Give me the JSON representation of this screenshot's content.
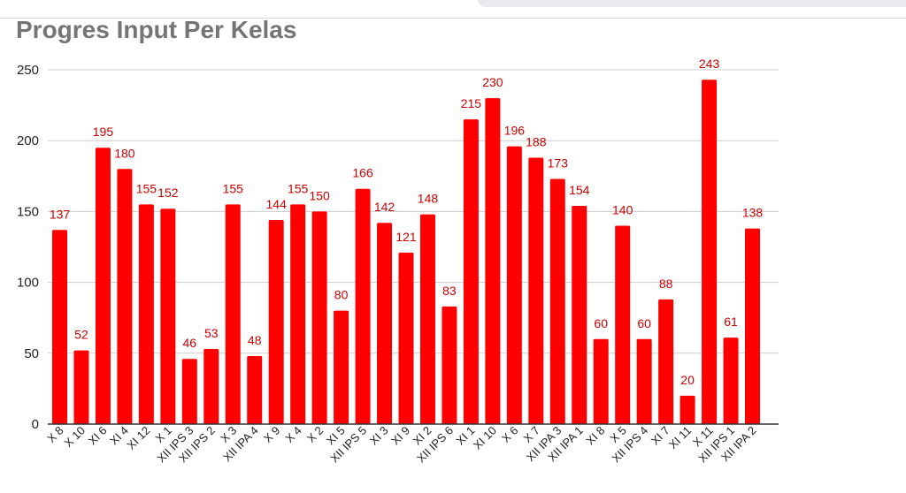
{
  "chart_data": {
    "type": "bar",
    "title": "Progres Input Per Kelas",
    "xlabel": "",
    "ylabel": "",
    "ylim": [
      0,
      250
    ],
    "yticks": [
      0,
      50,
      100,
      150,
      200,
      250
    ],
    "grid": true,
    "legend": "none",
    "bar_color": "#ff0000",
    "label_color": "#cc0000",
    "categories": [
      "X 8",
      "X 10",
      "XI 6",
      "XI 4",
      "XI 12",
      "X 1",
      "XII IPS 3",
      "XII IPS 2",
      "X 3",
      "XII IPA 4",
      "X 9",
      "X 4",
      "X 2",
      "XI 5",
      "XII IPS 5",
      "XI 3",
      "XI 9",
      "XI 2",
      "XII IPS 6",
      "XI 1",
      "XI 10",
      "X 6",
      "X 7",
      "XII IPA 3",
      "XII IPA 1",
      "XI 8",
      "X 5",
      "XII IPS 4",
      "XI 7",
      "XI 11",
      "X 11",
      "XII IPS 1",
      "XII IPA 2"
    ],
    "values": [
      137,
      52,
      195,
      180,
      155,
      152,
      46,
      53,
      155,
      48,
      144,
      155,
      150,
      80,
      166,
      142,
      121,
      148,
      83,
      215,
      230,
      196,
      188,
      173,
      154,
      60,
      140,
      60,
      88,
      20,
      243,
      61,
      138
    ]
  }
}
